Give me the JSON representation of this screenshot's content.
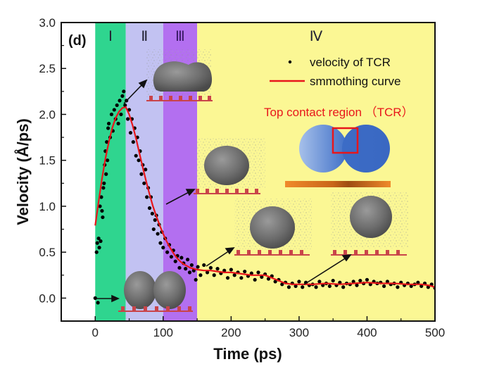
{
  "chart_data": {
    "type": "scatter",
    "panel_label": "(d)",
    "xlabel": "Time (ps)",
    "ylabel": "Velocity (Å/ps)",
    "xlim": [
      -50,
      500
    ],
    "ylim": [
      -0.25,
      3.0
    ],
    "xticks": [
      0,
      100,
      200,
      300,
      400,
      500
    ],
    "xtick_labels": [
      "0",
      "100",
      "200",
      "300",
      "400",
      "500"
    ],
    "yticks": [
      0.0,
      0.5,
      1.0,
      1.5,
      2.0,
      2.5,
      3.0
    ],
    "ytick_labels": [
      "0.0",
      "0.5",
      "1.0",
      "1.5",
      "2.0",
      "2.5",
      "3.0"
    ],
    "grid": false,
    "regions": [
      {
        "label": "Ⅰ",
        "x0": 0,
        "x1": 45,
        "color": "#2fd58f"
      },
      {
        "label": "Ⅱ",
        "x0": 45,
        "x1": 100,
        "color": "#c2c2f2"
      },
      {
        "label": "Ⅲ",
        "x0": 100,
        "x1": 150,
        "color": "#b36ff0"
      },
      {
        "label": "Ⅳ",
        "x0": 150,
        "x1": 500,
        "color": "#fbf794"
      }
    ],
    "legend": {
      "placement": "top-right",
      "entries": [
        {
          "name": "velocity of TCR",
          "marker": "dot",
          "color": "#000000"
        },
        {
          "name": "smmothing curve",
          "marker": "line",
          "color": "#e8161b"
        }
      ]
    },
    "annotation": "Top contact region （TCR）",
    "series": [
      {
        "name": "smmothing curve",
        "type": "line",
        "color": "#e8161b",
        "x": [
          0,
          5,
          10,
          15,
          20,
          25,
          30,
          35,
          40,
          45,
          50,
          55,
          60,
          65,
          70,
          75,
          80,
          85,
          90,
          95,
          100,
          105,
          110,
          115,
          120,
          125,
          130,
          135,
          140,
          145,
          150,
          160,
          170,
          180,
          190,
          200,
          210,
          220,
          230,
          240,
          250,
          260,
          270,
          280,
          290,
          300,
          320,
          340,
          360,
          380,
          400,
          420,
          440,
          460,
          480,
          490,
          500
        ],
        "y": [
          0.79,
          1.05,
          1.3,
          1.52,
          1.7,
          1.85,
          1.96,
          2.03,
          2.07,
          2.08,
          2.0,
          1.88,
          1.74,
          1.58,
          1.42,
          1.27,
          1.13,
          1.0,
          0.89,
          0.79,
          0.7,
          0.62,
          0.55,
          0.49,
          0.44,
          0.4,
          0.37,
          0.35,
          0.33,
          0.32,
          0.31,
          0.3,
          0.3,
          0.29,
          0.28,
          0.28,
          0.27,
          0.26,
          0.25,
          0.25,
          0.25,
          0.22,
          0.19,
          0.16,
          0.15,
          0.15,
          0.15,
          0.16,
          0.15,
          0.16,
          0.17,
          0.16,
          0.16,
          0.15,
          0.15,
          0.14,
          0.12
        ]
      },
      {
        "name": "velocity of TCR",
        "type": "scatter",
        "color": "#000000",
        "x": [
          0,
          2,
          3,
          4,
          5,
          6,
          7,
          8,
          9,
          10,
          11,
          12,
          13,
          14,
          15,
          16,
          17,
          18,
          19,
          20,
          22,
          24,
          26,
          28,
          30,
          32,
          34,
          36,
          38,
          40,
          42,
          44,
          46,
          48,
          50,
          52,
          54,
          56,
          58,
          60,
          62,
          64,
          66,
          68,
          70,
          72,
          74,
          76,
          78,
          80,
          82,
          84,
          86,
          88,
          90,
          92,
          94,
          96,
          98,
          100,
          103,
          106,
          109,
          112,
          115,
          118,
          121,
          124,
          127,
          130,
          133,
          136,
          139,
          142,
          145,
          148,
          151,
          155,
          160,
          165,
          170,
          175,
          180,
          185,
          190,
          195,
          200,
          205,
          210,
          215,
          220,
          225,
          230,
          235,
          240,
          245,
          250,
          255,
          260,
          265,
          270,
          275,
          280,
          285,
          290,
          295,
          300,
          305,
          310,
          315,
          320,
          325,
          330,
          335,
          340,
          345,
          350,
          355,
          360,
          365,
          370,
          375,
          380,
          385,
          390,
          395,
          400,
          405,
          410,
          415,
          420,
          425,
          430,
          435,
          440,
          445,
          450,
          455,
          460,
          465,
          470,
          475,
          480,
          485,
          490,
          495,
          500
        ],
        "y": [
          0.0,
          0.5,
          0.6,
          -0.05,
          0.65,
          0.55,
          1.0,
          0.62,
          1.1,
          0.95,
          0.88,
          1.2,
          1.25,
          1.45,
          1.6,
          1.35,
          1.7,
          1.5,
          1.85,
          1.9,
          1.75,
          2.0,
          1.82,
          2.05,
          1.95,
          2.1,
          1.9,
          2.15,
          2.0,
          2.2,
          2.25,
          2.1,
          2.15,
          1.95,
          2.05,
          1.8,
          1.95,
          1.7,
          1.85,
          1.55,
          1.75,
          1.5,
          1.6,
          1.35,
          1.45,
          1.25,
          1.4,
          1.1,
          1.2,
          0.98,
          1.1,
          0.92,
          0.75,
          0.85,
          0.9,
          0.7,
          0.8,
          0.6,
          0.72,
          0.55,
          0.65,
          0.5,
          0.58,
          0.45,
          0.52,
          0.4,
          0.46,
          0.33,
          0.44,
          0.38,
          0.32,
          0.42,
          0.28,
          0.36,
          0.3,
          0.2,
          0.34,
          0.25,
          0.36,
          0.28,
          0.33,
          0.25,
          0.32,
          0.27,
          0.3,
          0.22,
          0.31,
          0.25,
          0.28,
          0.22,
          0.29,
          0.24,
          0.27,
          0.2,
          0.28,
          0.23,
          0.26,
          0.21,
          0.24,
          0.18,
          0.2,
          0.15,
          0.17,
          0.12,
          0.16,
          0.13,
          0.18,
          0.12,
          0.17,
          0.14,
          0.15,
          0.12,
          0.18,
          0.14,
          0.16,
          0.13,
          0.19,
          0.14,
          0.17,
          0.12,
          0.16,
          0.15,
          0.18,
          0.14,
          0.19,
          0.16,
          0.2,
          0.15,
          0.18,
          0.16,
          0.17,
          0.13,
          0.18,
          0.15,
          0.16,
          0.12,
          0.17,
          0.14,
          0.16,
          0.13,
          0.15,
          0.17,
          0.13,
          0.16,
          0.12,
          0.15,
          0.11
        ]
      }
    ]
  }
}
